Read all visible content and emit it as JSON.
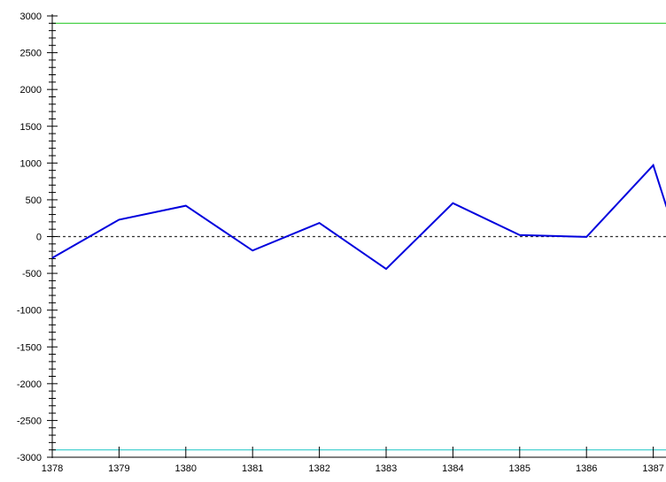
{
  "chart_data": {
    "type": "line",
    "title": "",
    "xlabel": "",
    "ylabel": "",
    "xlim": [
      1378,
      1387
    ],
    "ylim": [
      -3000,
      3000
    ],
    "x_ticks": [
      "1378",
      "1379",
      "1380",
      "1381",
      "1382",
      "1383",
      "1384",
      "1385",
      "1386",
      "1387"
    ],
    "y_ticks": [
      "3000",
      "2500",
      "2000",
      "1500",
      "1000",
      "500",
      "0",
      "-500",
      "-1000",
      "-1500",
      "-2000",
      "-2500",
      "-3000"
    ],
    "grid": false,
    "legend": "none",
    "series": [
      {
        "color": "#0000dd",
        "x": [
          1378,
          1379,
          1380,
          1381,
          1382,
          1383,
          1384,
          1385,
          1386,
          1387,
          1387.2
        ],
        "values": [
          -290,
          230,
          420,
          -190,
          185,
          -440,
          455,
          20,
          -5,
          970,
          400
        ]
      }
    ],
    "reference_lines": [
      {
        "value": 2900,
        "color": "#33cc33",
        "style": "solid"
      },
      {
        "value": 0,
        "color": "#333333",
        "style": "dashed"
      },
      {
        "value": -2900,
        "color": "#33cccc",
        "style": "solid"
      }
    ]
  }
}
